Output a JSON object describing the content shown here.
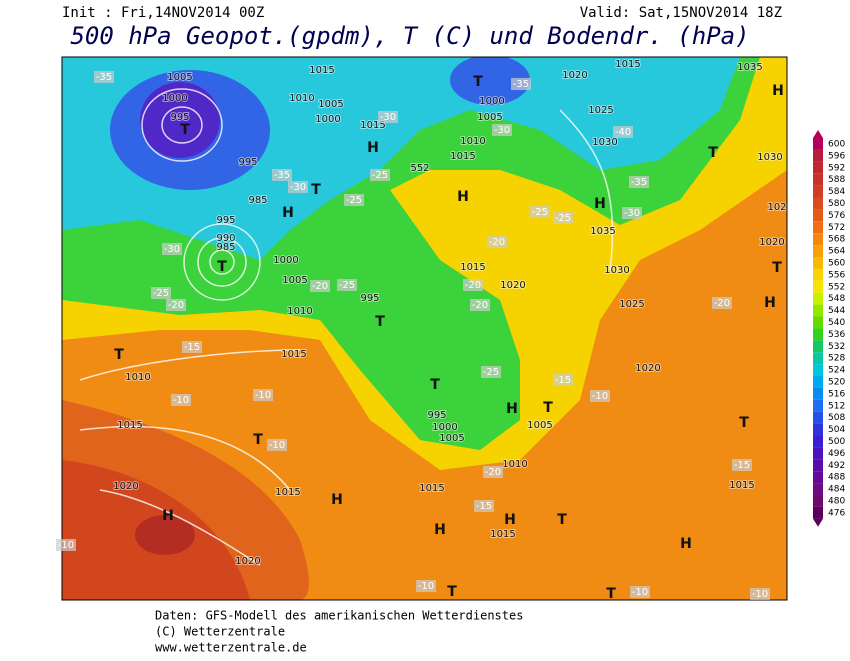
{
  "header": {
    "init": "Init : Fri,14NOV2014 00Z",
    "valid": "Valid: Sat,15NOV2014 18Z",
    "title": "500 hPa Geopot.(gpdm), T (C) und Bodendr. (hPa)"
  },
  "map": {
    "labels": [
      "1005",
      "1000",
      "995",
      "T",
      "995",
      "985",
      "995",
      "990",
      "985",
      "T",
      "1000",
      "1005",
      "1010",
      "1015",
      "1010",
      "1015",
      "1020",
      "H",
      "1020",
      "T",
      "T",
      "1015",
      "H",
      "1015",
      "1010",
      "1005",
      "1000",
      "1015",
      "H",
      "T",
      "H",
      "995",
      "T",
      "T",
      "995",
      "1000",
      "1005",
      "H",
      "1005",
      "T",
      "1010",
      "1015",
      "H",
      "H",
      "1015",
      "T",
      "1015",
      "1020",
      "1030",
      "1025",
      "1020",
      "1035",
      "H",
      "1030",
      "1025",
      "1020",
      "1015",
      "1035",
      "H",
      "T",
      "1030",
      "102",
      "1020",
      "T",
      "H",
      "T",
      "1015",
      "H",
      "T",
      "T",
      "1015",
      "1010",
      "1005",
      "1000",
      "T",
      "H",
      "552",
      "-35",
      "-30",
      "-35",
      "-30",
      "-40",
      "-35",
      "-30",
      "-25",
      "-25",
      "-20",
      "-20",
      "-20",
      "-25",
      "-20",
      "-25",
      "-25",
      "-30",
      "-35",
      "-30",
      "-25",
      "-20",
      "-15",
      "-10",
      "-10",
      "-10",
      "-20",
      "-15",
      "-15",
      "-10",
      "-20",
      "-15",
      "-10",
      "-10",
      "-10",
      "-10",
      "-25"
    ]
  },
  "colorbar": {
    "ticks": [
      600,
      596,
      592,
      588,
      584,
      580,
      576,
      572,
      568,
      564,
      560,
      556,
      552,
      548,
      544,
      540,
      536,
      532,
      528,
      524,
      520,
      516,
      512,
      508,
      504,
      500,
      496,
      492,
      488,
      484,
      480,
      476
    ],
    "colors": [
      "#b4005a",
      "#b41e3c",
      "#c0282d",
      "#c83228",
      "#d23c23",
      "#dc4b1e",
      "#e65a19",
      "#f06e14",
      "#f5870f",
      "#f8a00a",
      "#fab905",
      "#fcd200",
      "#f5e600",
      "#c8f000",
      "#96e600",
      "#64dc00",
      "#32d21e",
      "#14c864",
      "#0ac8a0",
      "#00c8dc",
      "#00aaf0",
      "#0a8cf0",
      "#1e6ef0",
      "#2850e6",
      "#3232dc",
      "#3c1ed2",
      "#4b14be",
      "#5a0aaa",
      "#640a96",
      "#6e0a82",
      "#6e0a6e",
      "#5a005a"
    ]
  },
  "footer": {
    "lines": [
      "Daten: GFS-Modell des amerikanischen Wetterdienstes",
      "(C) Wetterzentrale",
      "www.wetterzentrale.de"
    ]
  }
}
